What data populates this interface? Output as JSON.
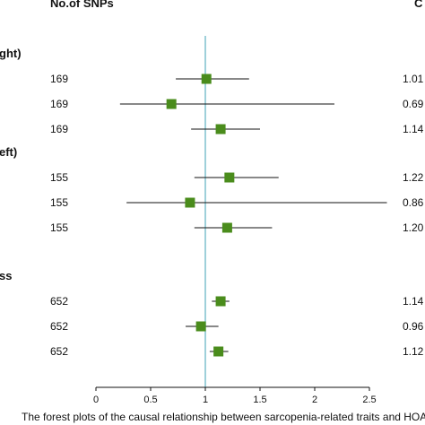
{
  "header": {
    "nsnp_label": "No.of SNPs",
    "or_label": "C"
  },
  "caption": "The forest plots of the causal relationship between sarcopenia-related traits and HOA",
  "colors": {
    "reference_line": "#6ab7c6",
    "marker": "#4a8c1c",
    "whisker": "#111111"
  },
  "chart_data": {
    "type": "forest",
    "title": "",
    "xlabel": "",
    "xlim": [
      0,
      2.5
    ],
    "xticks": [
      "0",
      "0.5",
      "1",
      "1.5",
      "2",
      "2.5"
    ],
    "reference_line": 1,
    "groups": [
      {
        "label": "ght)",
        "rows": [
          {
            "nsnp": "169",
            "or_text": "1.01",
            "or": 1.01,
            "lo": 0.73,
            "hi": 1.4
          },
          {
            "nsnp": "169",
            "or_text": "0.69",
            "or": 0.69,
            "lo": 0.22,
            "hi": 2.18
          },
          {
            "nsnp": "169",
            "or_text": "1.14",
            "or": 1.14,
            "lo": 0.87,
            "hi": 1.5
          }
        ]
      },
      {
        "label": "eft)",
        "rows": [
          {
            "nsnp": "155",
            "or_text": "1.22",
            "or": 1.22,
            "lo": 0.9,
            "hi": 1.67
          },
          {
            "nsnp": "155",
            "or_text": "0.86",
            "or": 0.86,
            "lo": 0.28,
            "hi": 2.66
          },
          {
            "nsnp": "155",
            "or_text": "1.20",
            "or": 1.2,
            "lo": 0.9,
            "hi": 1.61
          }
        ]
      },
      {
        "label": "ss",
        "rows": [
          {
            "nsnp": "652",
            "or_text": "1.14",
            "or": 1.14,
            "lo": 1.06,
            "hi": 1.22
          },
          {
            "nsnp": "652",
            "or_text": "0.96",
            "or": 0.96,
            "lo": 0.82,
            "hi": 1.12
          },
          {
            "nsnp": "652",
            "or_text": "1.12",
            "or": 1.12,
            "lo": 1.04,
            "hi": 1.21
          }
        ]
      }
    ]
  }
}
